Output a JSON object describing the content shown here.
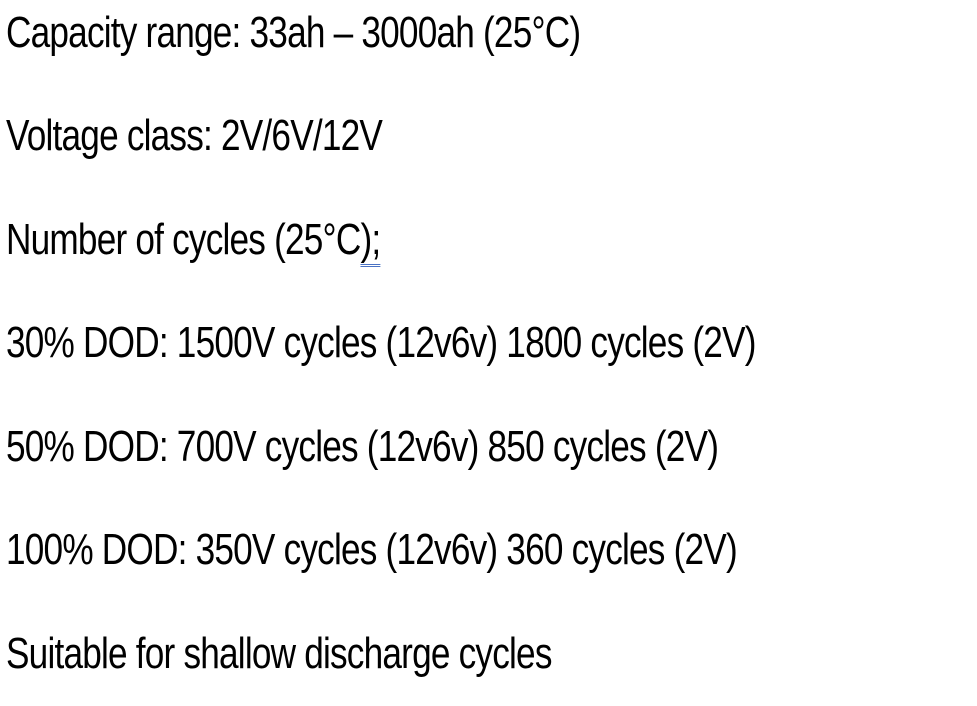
{
  "document": {
    "lines": [
      "Capacity range: 33ah – 3000ah (25°C)",
      "Voltage class: 2V/6V/12V",
      "Number of cycles (25°C);",
      "30% DOD: 1500V cycles (12v6v) 1800 cycles (2V)",
      "50% DOD: 700V cycles (12v6v) 850 cycles (2V)",
      "100% DOD: 350V cycles (12v6v) 360 cycles (2V)",
      "Suitable for shallow discharge cycles"
    ],
    "line3_prefix": "Number of cycles (25°C",
    "line3_marked": ");"
  },
  "colors": {
    "text": "#000000",
    "underline_mark": "#4a72c4",
    "background": "#ffffff"
  }
}
